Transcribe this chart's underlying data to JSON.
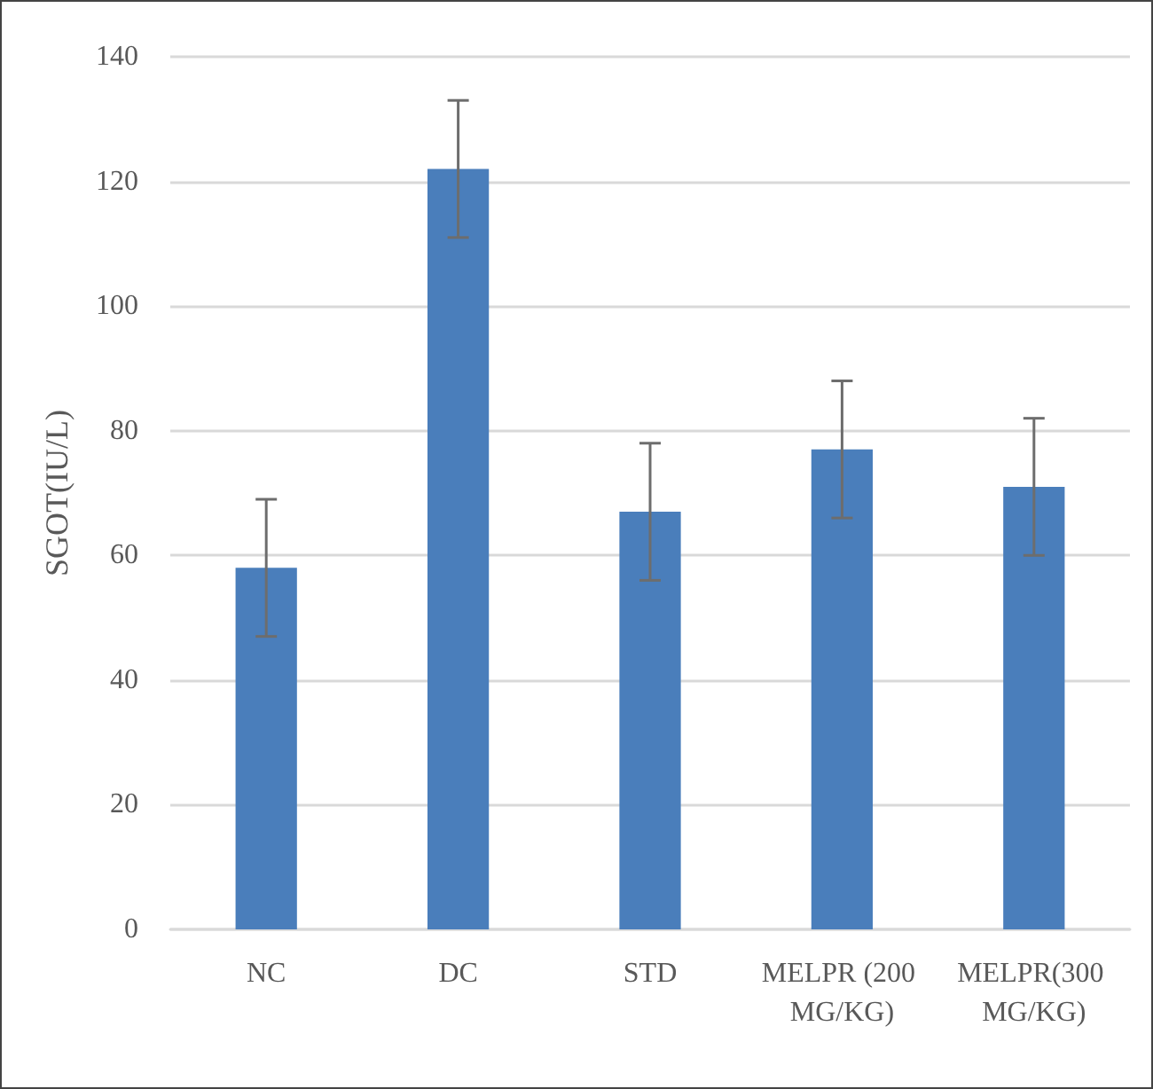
{
  "chart_data": {
    "type": "bar",
    "ylabel": "SGOT(IU/L)",
    "categories": [
      "NC",
      "DC",
      "STD",
      "MELPR (200 MG/KG)",
      "MELPR(300 MG/KG)"
    ],
    "values": [
      58,
      122,
      67,
      77,
      71
    ],
    "errors": [
      11,
      11,
      11,
      11,
      11
    ],
    "color": "#4a7ebb",
    "ylim": [
      0,
      140
    ],
    "yticks": [
      0,
      20,
      40,
      60,
      80,
      100,
      120,
      140
    ],
    "grid": "y"
  }
}
